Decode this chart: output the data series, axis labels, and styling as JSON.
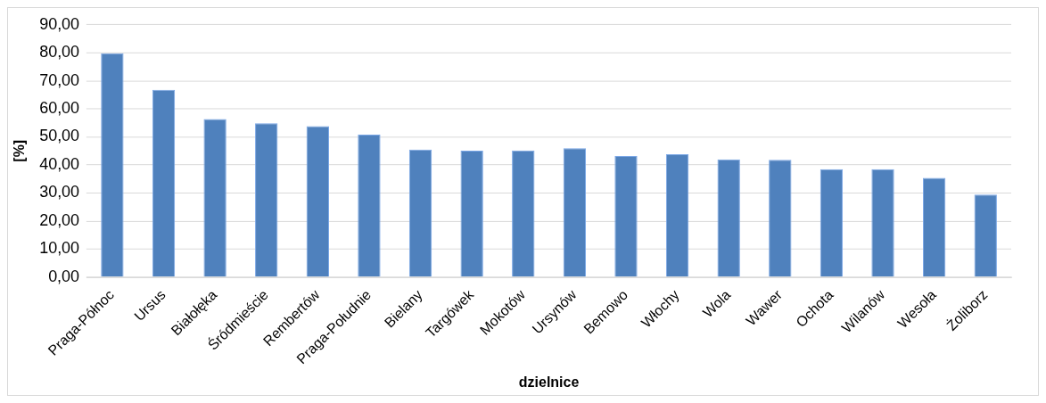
{
  "chart_data": {
    "type": "bar",
    "xlabel": "dzielnice",
    "ylabel": "[%]",
    "categories": [
      "Praga-Północ",
      "Ursus",
      "Białołęka",
      "Śródmieście",
      "Rembertów",
      "Praga-Południe",
      "Bielany",
      "Targówek",
      "Mokotów",
      "Ursynów",
      "Bemowo",
      "Włochy",
      "Wola",
      "Wawer",
      "Ochota",
      "Wilanów",
      "Wesoła",
      "Żoliborz"
    ],
    "values": [
      79.8,
      66.8,
      56.4,
      54.9,
      53.8,
      50.8,
      45.5,
      45.1,
      45.2,
      46,
      43.2,
      43.8,
      42,
      41.8,
      38.5,
      38.5,
      35.4,
      29.4
    ],
    "color": "#4f81bd",
    "ylim": [
      0,
      90
    ],
    "yticks": [
      {
        "value": 0,
        "label": "0,00"
      },
      {
        "value": 10,
        "label": "10,00"
      },
      {
        "value": 20,
        "label": "20,00"
      },
      {
        "value": 30,
        "label": "30,00"
      },
      {
        "value": 40,
        "label": "40,00"
      },
      {
        "value": 50,
        "label": "50,00"
      },
      {
        "value": 60,
        "label": "60,00"
      },
      {
        "value": 70,
        "label": "70,00"
      },
      {
        "value": 80,
        "label": "80,00"
      },
      {
        "value": 90,
        "label": "90,00"
      }
    ],
    "grid": "y",
    "legend": false
  }
}
